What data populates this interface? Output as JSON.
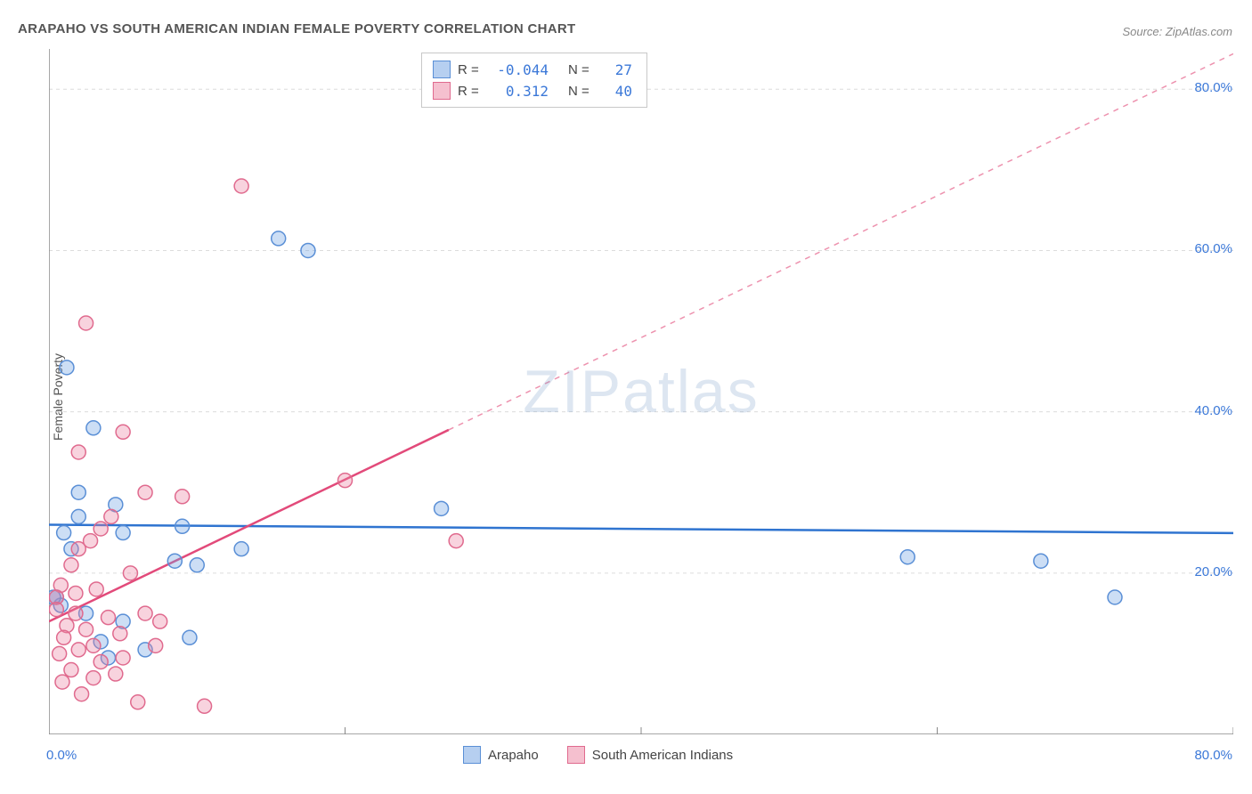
{
  "title": "ARAPAHO VS SOUTH AMERICAN INDIAN FEMALE POVERTY CORRELATION CHART",
  "source": "Source: ZipAtlas.com",
  "ylabel": "Female Poverty",
  "watermark": "ZIPatlas",
  "chart": {
    "type": "scatter",
    "xlim": [
      0,
      80
    ],
    "ylim": [
      0,
      85
    ],
    "axis_color": "#888888",
    "grid_color": "#dcdcdc",
    "grid_dash": "4,4",
    "background": "#ffffff",
    "x_ticks": [
      0,
      20,
      40,
      60,
      80
    ],
    "x_tick_labels": [
      "0.0%",
      "",
      "",
      "",
      "80.0%"
    ],
    "y_ticks": [
      20,
      40,
      60,
      80
    ],
    "y_tick_labels": [
      "20.0%",
      "40.0%",
      "60.0%",
      "80.0%"
    ],
    "tick_label_color": "#3b78d8",
    "tick_label_fontsize": 15,
    "marker_radius": 8,
    "marker_stroke_width": 1.5,
    "series": [
      {
        "name": "Arapaho",
        "fill": "rgba(110,160,225,0.35)",
        "stroke": "#5a8fd6",
        "points": [
          [
            1.2,
            45.5
          ],
          [
            3.0,
            38.0
          ],
          [
            15.5,
            61.5
          ],
          [
            17.5,
            60.0
          ],
          [
            26.5,
            28.0
          ],
          [
            5.0,
            25.0
          ],
          [
            2.0,
            30.0
          ],
          [
            2.0,
            27.0
          ],
          [
            4.5,
            28.5
          ],
          [
            9.0,
            25.8
          ],
          [
            1.0,
            25.0
          ],
          [
            1.5,
            23.0
          ],
          [
            8.5,
            21.5
          ],
          [
            10.0,
            21.0
          ],
          [
            13.0,
            23.0
          ],
          [
            0.5,
            17.0
          ],
          [
            0.8,
            16.0
          ],
          [
            2.5,
            15.0
          ],
          [
            5.0,
            14.0
          ],
          [
            6.5,
            10.5
          ],
          [
            3.5,
            11.5
          ],
          [
            4.0,
            9.5
          ],
          [
            9.5,
            12.0
          ],
          [
            58.0,
            22.0
          ],
          [
            67.0,
            21.5
          ],
          [
            72.0,
            17.0
          ],
          [
            0.3,
            17.0
          ]
        ],
        "trend": {
          "slope": -0.013,
          "intercept": 26.0,
          "color": "#2f74d0",
          "width": 2.5
        }
      },
      {
        "name": "South American Indians",
        "fill": "rgba(235,130,160,0.35)",
        "stroke": "#e06a8e",
        "points": [
          [
            2.5,
            51.0
          ],
          [
            13.0,
            68.0
          ],
          [
            2.0,
            35.0
          ],
          [
            5.0,
            37.5
          ],
          [
            6.5,
            30.0
          ],
          [
            9.0,
            29.5
          ],
          [
            20.0,
            31.5
          ],
          [
            27.5,
            24.0
          ],
          [
            3.5,
            25.5
          ],
          [
            2.8,
            24.0
          ],
          [
            4.2,
            27.0
          ],
          [
            2.0,
            23.0
          ],
          [
            1.5,
            21.0
          ],
          [
            0.8,
            18.5
          ],
          [
            0.5,
            17.0
          ],
          [
            1.8,
            17.5
          ],
          [
            5.5,
            20.0
          ],
          [
            6.5,
            15.0
          ],
          [
            7.5,
            14.0
          ],
          [
            4.0,
            14.5
          ],
          [
            2.5,
            13.0
          ],
          [
            1.2,
            13.5
          ],
          [
            1.0,
            12.0
          ],
          [
            3.0,
            11.0
          ],
          [
            0.7,
            10.0
          ],
          [
            2.0,
            10.5
          ],
          [
            3.5,
            9.0
          ],
          [
            5.0,
            9.5
          ],
          [
            1.5,
            8.0
          ],
          [
            3.0,
            7.0
          ],
          [
            4.5,
            7.5
          ],
          [
            0.9,
            6.5
          ],
          [
            2.2,
            5.0
          ],
          [
            6.0,
            4.0
          ],
          [
            10.5,
            3.5
          ],
          [
            0.5,
            15.5
          ],
          [
            1.8,
            15.0
          ],
          [
            3.2,
            18.0
          ],
          [
            4.8,
            12.5
          ],
          [
            7.2,
            11.0
          ]
        ],
        "trend": {
          "slope": 0.88,
          "intercept": 14.0,
          "color": "#e24a7a",
          "width": 2.5,
          "dash_after_x": 27
        }
      }
    ]
  },
  "stats_legend": {
    "rows": [
      {
        "swatch_fill": "rgba(110,160,225,0.5)",
        "swatch_stroke": "#5a8fd6",
        "r": "-0.044",
        "n": "27"
      },
      {
        "swatch_fill": "rgba(235,130,160,0.5)",
        "swatch_stroke": "#e06a8e",
        "r": "0.312",
        "n": "40"
      }
    ],
    "r_label": "R =",
    "n_label": "N ="
  },
  "bottom_legend": [
    {
      "swatch_fill": "rgba(110,160,225,0.5)",
      "swatch_stroke": "#5a8fd6",
      "label": "Arapaho"
    },
    {
      "swatch_fill": "rgba(235,130,160,0.5)",
      "swatch_stroke": "#e06a8e",
      "label": "South American Indians"
    }
  ]
}
